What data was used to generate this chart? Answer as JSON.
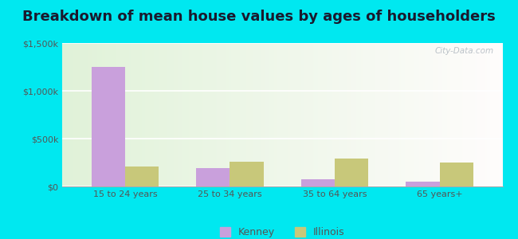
{
  "title": "Breakdown of mean house values by ages of householders",
  "categories": [
    "15 to 24 years",
    "25 to 34 years",
    "35 to 64 years",
    "65 years+"
  ],
  "kenney_values": [
    1250000,
    190000,
    72000,
    52000
  ],
  "illinois_values": [
    210000,
    255000,
    295000,
    250000
  ],
  "kenney_color": "#c9a0dc",
  "illinois_color": "#c8c87a",
  "ylim": [
    0,
    1500000
  ],
  "yticks": [
    0,
    500000,
    1000000,
    1500000
  ],
  "ytick_labels": [
    "$0",
    "$500k",
    "$1,000k",
    "$1,500k"
  ],
  "bar_width": 0.32,
  "background_outer": "#00e8f0",
  "title_fontsize": 13,
  "legend_labels": [
    "Kenney",
    "Illinois"
  ],
  "watermark": "City-Data.com",
  "tick_color": "#555555",
  "title_color": "#1a1a2e"
}
